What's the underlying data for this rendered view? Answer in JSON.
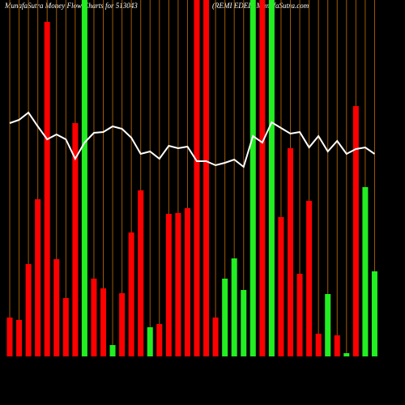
{
  "chart_data": {
    "type": "bar",
    "title": "MunafaSutra  Money Flow  Charts for 513043",
    "subtitle": "(REMI EDEL) MunafaSutra.com",
    "categories": [
      null,
      null,
      null,
      null,
      null,
      null,
      null,
      null,
      null,
      null,
      null,
      null,
      null,
      null,
      null,
      null,
      null,
      null,
      null,
      null,
      null,
      null,
      null,
      null,
      null,
      null,
      null,
      null,
      null,
      null,
      null,
      null,
      null,
      null,
      null,
      null,
      null,
      null,
      null,
      null
    ],
    "values": [
      48,
      45,
      114,
      194,
      413,
      120,
      72,
      288,
      440,
      96,
      84,
      14,
      78,
      153,
      205,
      36,
      40,
      176,
      177,
      183,
      440,
      440,
      48,
      96,
      121,
      82,
      440,
      440,
      440,
      172,
      257,
      102,
      192,
      28,
      77,
      26,
      4,
      309,
      209,
      105
    ],
    "colors": [
      "#ff0000",
      "#ff0000",
      "#ff0000",
      "#ff0000",
      "#ff0000",
      "#ff0000",
      "#ff0000",
      "#ff0000",
      "#22ee22",
      "#ff0000",
      "#ff0000",
      "#22ee22",
      "#ff0000",
      "#ff0000",
      "#ff0000",
      "#22ee22",
      "#ff0000",
      "#ff0000",
      "#ff0000",
      "#ff0000",
      "#ff0000",
      "#ff0000",
      "#ff0000",
      "#22ee22",
      "#22ee22",
      "#22ee22",
      "#22ee22",
      "#ff0000",
      "#22ee22",
      "#ff0000",
      "#ff0000",
      "#ff0000",
      "#ff0000",
      "#ff0000",
      "#22ee22",
      "#ff0000",
      "#22ee22",
      "#ff0000",
      "#22ee22",
      "#22ee22"
    ],
    "line_values": [
      288,
      292,
      301,
      284,
      268,
      274,
      268,
      244,
      264,
      276,
      277,
      284,
      281,
      270,
      250,
      253,
      244,
      260,
      257,
      259,
      241,
      241,
      236,
      239,
      243,
      234,
      272,
      264,
      289,
      282,
      275,
      277,
      258,
      272,
      253,
      266,
      250,
      256,
      258,
      250
    ],
    "line_color": "#ffffff",
    "grid_color": "#a05a00",
    "ylim": [
      0,
      440
    ]
  }
}
